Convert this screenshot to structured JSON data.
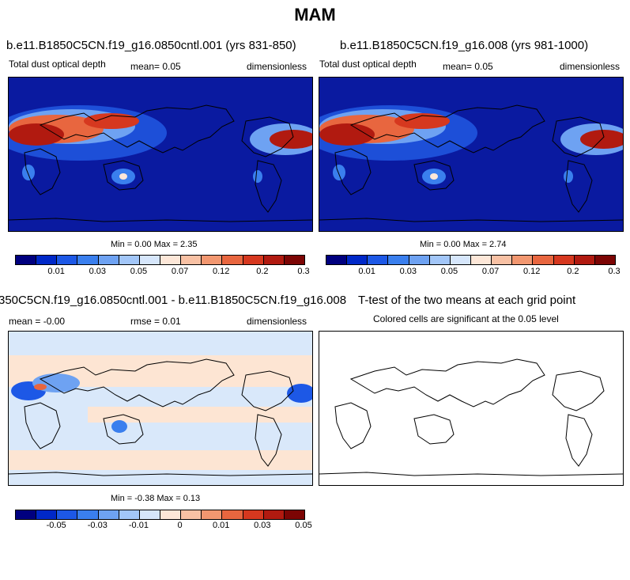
{
  "figure": {
    "title": "MAM"
  },
  "colors": {
    "abs_scale": [
      "#00007f",
      "#0028c8",
      "#1d58e6",
      "#3a7fee",
      "#6ea2f2",
      "#a2c6f8",
      "#d6e6fb",
      "#fde7d8",
      "#f8c1a4",
      "#f29770",
      "#e8663f",
      "#d6381f",
      "#b11a10",
      "#7c0504"
    ],
    "diff_scale": [
      "#00007f",
      "#0028c8",
      "#1d58e6",
      "#3a7fee",
      "#6ea2f2",
      "#a2c6f8",
      "#d6e6fb",
      "#fde7d8",
      "#f8c1a4",
      "#f29770",
      "#e8663f",
      "#d6381f",
      "#b11a10",
      "#7c0504"
    ],
    "ocean_base": "#0a1aa0",
    "diff_base": "#d9e8fa",
    "diff_pos": "#fde5d3"
  },
  "panels": {
    "p1": {
      "title": "b.e11.B1850C5CN.f19_g16.0850cntl.001 (yrs 831-850)",
      "left_label": "Total dust optical depth",
      "mean_label": "mean=   0.05",
      "units": "dimensionless",
      "minmax": "Min =   0.00 Max =   2.35",
      "ticks": [
        "0.01",
        "0.03",
        "0.05",
        "0.07",
        "0.12",
        "0.2",
        "0.3"
      ]
    },
    "p2": {
      "title": "b.e11.B1850C5CN.f19_g16.008 (yrs 981-1000)",
      "left_label": "Total dust optical depth",
      "mean_label": "mean=   0.05",
      "units": "dimensionless",
      "minmax": "Min =   0.00 Max =   2.74",
      "ticks": [
        "0.01",
        "0.03",
        "0.05",
        "0.07",
        "0.12",
        "0.2",
        "0.3"
      ]
    },
    "p3": {
      "title": "350C5CN.f19_g16.0850cntl.001 - b.e11.B1850C5CN.f19_g16.008",
      "left_label": "mean =  -0.00",
      "mean_label": "rmse =   0.01",
      "units": "dimensionless",
      "minmax": "Min =  -0.38 Max =   0.13",
      "ticks": [
        "-0.05",
        "-0.03",
        "-0.01",
        "0",
        "0.01",
        "0.03",
        "0.05"
      ]
    },
    "p4": {
      "title": "T-test of the two means at each grid point",
      "subtitle": "Colored cells are significant at the 0.05 level"
    }
  }
}
